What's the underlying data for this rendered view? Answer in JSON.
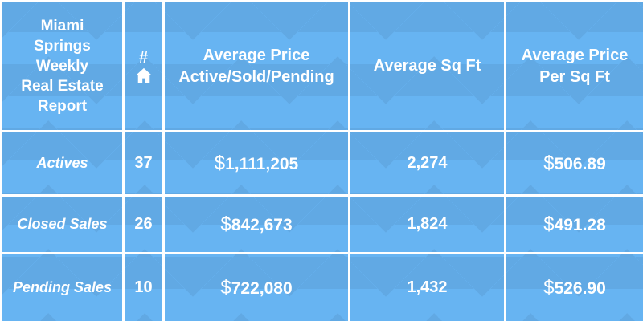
{
  "header": {
    "title_lines": [
      "Miami",
      "Springs",
      "Weekly",
      "Real Estate",
      "Report"
    ],
    "count_symbol": "#",
    "count_icon": "house-icon",
    "avg_price_lines": [
      "Average Price",
      "Active/Sold/Pending"
    ],
    "avg_sqft": "Average Sq Ft",
    "avg_price_sqft_lines": [
      "Average Price",
      "Per Sq Ft"
    ]
  },
  "rows": [
    {
      "label": "Actives",
      "count": "37",
      "avg_price": "1,111,205",
      "avg_sqft": "2,274",
      "price_per_sqft": "506.89"
    },
    {
      "label": "Closed Sales",
      "count": "26",
      "avg_price": "842,673",
      "avg_sqft": "1,824",
      "price_per_sqft": "491.28"
    },
    {
      "label": "Pending Sales",
      "count": "10",
      "avg_price": "722,080",
      "avg_sqft": "1,432",
      "price_per_sqft": "526.90"
    }
  ],
  "currency_symbol": "$",
  "colors": {
    "background": "#67b4f2",
    "grid_lines": "#ffffff",
    "text": "#ffffff"
  }
}
